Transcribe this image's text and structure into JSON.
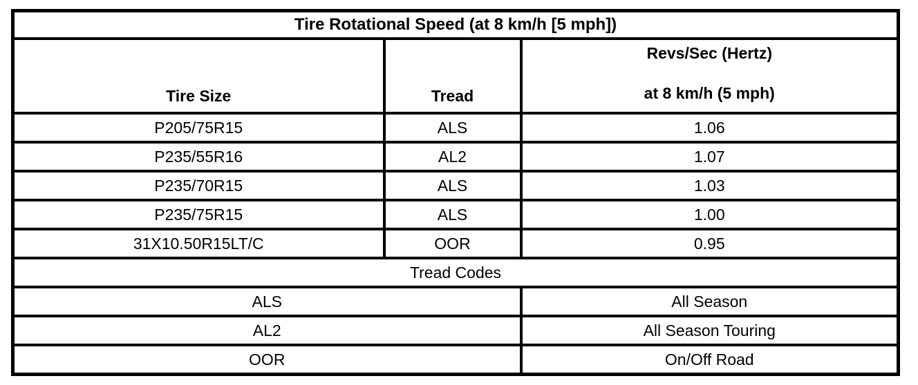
{
  "table": {
    "title": "Tire Rotational Speed (at 8 km/h [5 mph])",
    "columns": {
      "tire_size": "Tire Size",
      "tread": "Tread",
      "revs_line1": "Revs/Sec (Hertz)",
      "revs_line2": "at 8 km/h (5 mph)"
    },
    "rows": [
      {
        "tire_size": "P205/75R15",
        "tread": "ALS",
        "revs": "1.06"
      },
      {
        "tire_size": "P235/55R16",
        "tread": "AL2",
        "revs": "1.07"
      },
      {
        "tire_size": "P235/70R15",
        "tread": "ALS",
        "revs": "1.03"
      },
      {
        "tire_size": "P235/75R15",
        "tread": "ALS",
        "revs": "1.00"
      },
      {
        "tire_size": "31X10.50R15LT/C",
        "tread": "OOR",
        "revs": "0.95"
      }
    ],
    "tread_codes": {
      "header": "Tread Codes",
      "codes": [
        {
          "code": "ALS",
          "description": "All Season"
        },
        {
          "code": "AL2",
          "description": "All Season Touring"
        },
        {
          "code": "OOR",
          "description": "On/Off Road"
        }
      ]
    },
    "colors": {
      "border": "#000000",
      "background": "#ffffff",
      "text": "#000000"
    }
  }
}
